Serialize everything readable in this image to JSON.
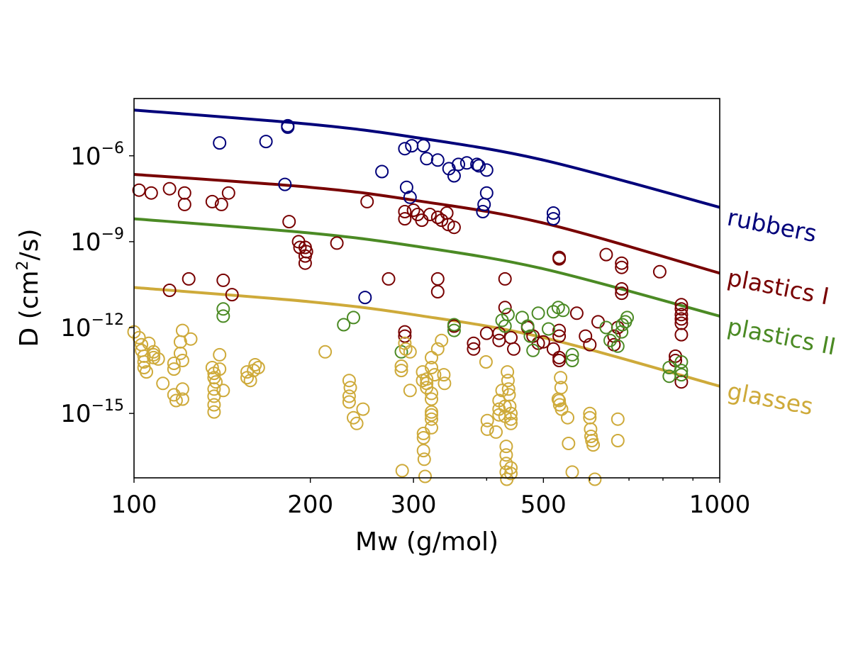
{
  "chart_data": {
    "type": "scatter",
    "title": "",
    "xlabel": "Mw (g/mol)",
    "ylabel_main": "D (cm",
    "ylabel_sup": "2",
    "ylabel_tail": "/s)",
    "xscale": "log",
    "yscale": "log",
    "xlim": [
      100,
      1000
    ],
    "ylim_log10": [
      -17.25,
      -4.0
    ],
    "x_ticks": [
      {
        "value": 100,
        "label": "100"
      },
      {
        "value": 200,
        "label": "200"
      },
      {
        "value": 300,
        "label": "300"
      },
      {
        "value": 500,
        "label": "500"
      },
      {
        "value": 1000,
        "label": "1000"
      }
    ],
    "y_ticks": [
      {
        "log10": -6,
        "base": "10",
        "exp": "−6"
      },
      {
        "log10": -9,
        "base": "10",
        "exp": "−9"
      },
      {
        "log10": -12,
        "base": "10",
        "exp": "−12"
      },
      {
        "log10": -15,
        "base": "10",
        "exp": "−15"
      }
    ],
    "curves": [
      {
        "name": "rubbers",
        "color": "#00007a",
        "points": [
          [
            100,
            -4.4
          ],
          [
            200,
            -4.9
          ],
          [
            300,
            -5.35
          ],
          [
            500,
            -6.15
          ],
          [
            1000,
            -7.8
          ]
        ]
      },
      {
        "name": "plastics I",
        "color": "#780000",
        "points": [
          [
            100,
            -6.65
          ],
          [
            200,
            -7.1
          ],
          [
            300,
            -7.55
          ],
          [
            500,
            -8.35
          ],
          [
            1000,
            -10.1
          ]
        ]
      },
      {
        "name": "plastics II",
        "color": "#4b8a24",
        "points": [
          [
            100,
            -8.2
          ],
          [
            200,
            -8.7
          ],
          [
            300,
            -9.15
          ],
          [
            500,
            -9.95
          ],
          [
            1000,
            -11.6
          ]
        ]
      },
      {
        "name": "glasses",
        "color": "#ceaa3a",
        "points": [
          [
            100,
            -10.6
          ],
          [
            200,
            -11.1
          ],
          [
            300,
            -11.55
          ],
          [
            500,
            -12.35
          ],
          [
            1000,
            -14.05
          ]
        ]
      }
    ],
    "series": [
      {
        "name": "rubbers",
        "color": "#00007a",
        "points": [
          [
            140,
            -5.55
          ],
          [
            168,
            -5.5
          ],
          [
            183,
            -4.95
          ],
          [
            183,
            -5.0
          ],
          [
            181,
            -7.0
          ],
          [
            290,
            -5.75
          ],
          [
            298,
            -5.65
          ],
          [
            312,
            -5.65
          ],
          [
            265,
            -6.55
          ],
          [
            292,
            -7.1
          ],
          [
            296,
            -7.45
          ],
          [
            316,
            -6.1
          ],
          [
            330,
            -6.15
          ],
          [
            345,
            -6.45
          ],
          [
            352,
            -6.7
          ],
          [
            358,
            -6.3
          ],
          [
            370,
            -6.25
          ],
          [
            385,
            -6.3
          ],
          [
            388,
            -6.35
          ],
          [
            400,
            -6.5
          ],
          [
            400,
            -7.3
          ],
          [
            396,
            -7.7
          ],
          [
            394,
            -7.95
          ],
          [
            520,
            -8.0
          ],
          [
            520,
            -8.2
          ],
          [
            248,
            -10.95
          ]
        ]
      },
      {
        "name": "plastics I",
        "color": "#780000",
        "points": [
          [
            102,
            -7.2
          ],
          [
            107,
            -7.3
          ],
          [
            115,
            -7.15
          ],
          [
            122,
            -7.3
          ],
          [
            122,
            -7.7
          ],
          [
            136,
            -7.6
          ],
          [
            141,
            -7.7
          ],
          [
            145,
            -7.3
          ],
          [
            115,
            -10.7
          ],
          [
            124,
            -10.3
          ],
          [
            142,
            -10.35
          ],
          [
            147,
            -10.85
          ],
          [
            184,
            -8.3
          ],
          [
            191,
            -9.0
          ],
          [
            192,
            -9.2
          ],
          [
            196,
            -9.2
          ],
          [
            196,
            -9.5
          ],
          [
            196,
            -9.75
          ],
          [
            197,
            -9.35
          ],
          [
            222,
            -9.05
          ],
          [
            250,
            -7.6
          ],
          [
            290,
            -7.95
          ],
          [
            290,
            -8.2
          ],
          [
            300,
            -7.9
          ],
          [
            305,
            -8.05
          ],
          [
            310,
            -8.25
          ],
          [
            320,
            -8.05
          ],
          [
            330,
            -8.15
          ],
          [
            335,
            -8.25
          ],
          [
            342,
            -8.0
          ],
          [
            344,
            -8.4
          ],
          [
            352,
            -8.5
          ],
          [
            330,
            -10.3
          ],
          [
            330,
            -10.75
          ],
          [
            272,
            -10.3
          ],
          [
            290,
            -12.15
          ],
          [
            290,
            -12.3
          ],
          [
            352,
            -11.95
          ],
          [
            430,
            -10.3
          ],
          [
            430,
            -11.3
          ],
          [
            420,
            -12.45
          ],
          [
            440,
            -12.35
          ],
          [
            445,
            -12.75
          ],
          [
            470,
            -12.0
          ],
          [
            480,
            -12.3
          ],
          [
            490,
            -12.55
          ],
          [
            520,
            -12.75
          ],
          [
            532,
            -9.55
          ],
          [
            532,
            -9.6
          ],
          [
            532,
            -12.1
          ],
          [
            532,
            -12.3
          ],
          [
            532,
            -13.05
          ],
          [
            532,
            -13.15
          ],
          [
            570,
            -11.5
          ],
          [
            590,
            -12.3
          ],
          [
            600,
            -12.6
          ],
          [
            620,
            -11.8
          ],
          [
            640,
            -9.45
          ],
          [
            660,
            -12.3
          ],
          [
            660,
            -12.6
          ],
          [
            670,
            -12.0
          ],
          [
            680,
            -9.75
          ],
          [
            680,
            -9.9
          ],
          [
            680,
            -10.65
          ],
          [
            680,
            -10.8
          ],
          [
            790,
            -10.05
          ],
          [
            840,
            -13.0
          ],
          [
            840,
            -13.15
          ],
          [
            860,
            -11.2
          ],
          [
            860,
            -11.35
          ],
          [
            860,
            -11.55
          ],
          [
            860,
            -11.7
          ],
          [
            860,
            -11.85
          ],
          [
            860,
            -12.25
          ],
          [
            860,
            -13.9
          ],
          [
            380,
            -12.55
          ],
          [
            380,
            -12.75
          ],
          [
            400,
            -12.2
          ],
          [
            420,
            -12.2
          ],
          [
            500,
            -12.5
          ]
        ]
      },
      {
        "name": "plastics II",
        "color": "#4b8a24",
        "points": [
          [
            142,
            -11.35
          ],
          [
            142,
            -11.6
          ],
          [
            228,
            -11.9
          ],
          [
            237,
            -11.65
          ],
          [
            286,
            -12.85
          ],
          [
            352,
            -11.9
          ],
          [
            352,
            -12.1
          ],
          [
            425,
            -11.75
          ],
          [
            435,
            -11.55
          ],
          [
            460,
            -11.65
          ],
          [
            470,
            -11.95
          ],
          [
            475,
            -12.3
          ],
          [
            490,
            -11.5
          ],
          [
            510,
            -12.05
          ],
          [
            520,
            -11.45
          ],
          [
            530,
            -11.3
          ],
          [
            540,
            -11.4
          ],
          [
            560,
            -12.95
          ],
          [
            560,
            -13.15
          ],
          [
            640,
            -12.0
          ],
          [
            650,
            -12.45
          ],
          [
            670,
            -12.65
          ],
          [
            680,
            -12.15
          ],
          [
            682,
            -11.9
          ],
          [
            690,
            -11.8
          ],
          [
            695,
            -11.65
          ],
          [
            820,
            -13.4
          ],
          [
            820,
            -13.7
          ],
          [
            860,
            -13.2
          ],
          [
            860,
            -13.5
          ],
          [
            860,
            -13.65
          ],
          [
            480,
            -12.8
          ],
          [
            430,
            -11.95
          ]
        ]
      },
      {
        "name": "glasses",
        "color": "#ceaa3a",
        "points": [
          [
            100,
            -12.15
          ],
          [
            102,
            -12.35
          ],
          [
            103,
            -12.6
          ],
          [
            103,
            -12.8
          ],
          [
            104,
            -13.0
          ],
          [
            104,
            -13.2
          ],
          [
            104,
            -13.4
          ],
          [
            105,
            -13.55
          ],
          [
            106,
            -12.55
          ],
          [
            108,
            -12.85
          ],
          [
            108,
            -12.95
          ],
          [
            108,
            -13.05
          ],
          [
            110,
            -13.1
          ],
          [
            112,
            -13.95
          ],
          [
            117,
            -13.25
          ],
          [
            117,
            -13.45
          ],
          [
            117,
            -14.35
          ],
          [
            118,
            -14.55
          ],
          [
            120,
            -12.9
          ],
          [
            120,
            -12.5
          ],
          [
            121,
            -12.1
          ],
          [
            121,
            -13.15
          ],
          [
            121,
            -14.15
          ],
          [
            121,
            -14.5
          ],
          [
            125,
            -12.4
          ],
          [
            136,
            -13.4
          ],
          [
            137,
            -13.6
          ],
          [
            137,
            -13.75
          ],
          [
            137,
            -14.15
          ],
          [
            137,
            -14.4
          ],
          [
            137,
            -14.7
          ],
          [
            137,
            -14.95
          ],
          [
            138,
            -13.9
          ],
          [
            140,
            -12.95
          ],
          [
            140,
            -13.45
          ],
          [
            142,
            -14.2
          ],
          [
            156,
            -13.55
          ],
          [
            156,
            -13.75
          ],
          [
            158,
            -13.85
          ],
          [
            160,
            -13.5
          ],
          [
            161,
            -13.3
          ],
          [
            163,
            -13.4
          ],
          [
            212,
            -12.85
          ],
          [
            233,
            -14.4
          ],
          [
            233,
            -14.6
          ],
          [
            233,
            -13.85
          ],
          [
            234,
            -14.1
          ],
          [
            237,
            -15.15
          ],
          [
            240,
            -15.35
          ],
          [
            246,
            -14.85
          ],
          [
            286,
            -13.35
          ],
          [
            286,
            -13.5
          ],
          [
            287,
            -17.0
          ],
          [
            290,
            -12.55
          ],
          [
            291,
            -12.75
          ],
          [
            296,
            -12.85
          ],
          [
            296,
            -14.2
          ],
          [
            311,
            -13.55
          ],
          [
            311,
            -13.85
          ],
          [
            312,
            -15.7
          ],
          [
            312,
            -15.85
          ],
          [
            312,
            -16.3
          ],
          [
            313,
            -16.6
          ],
          [
            314,
            -17.2
          ],
          [
            316,
            -13.8
          ],
          [
            316,
            -13.95
          ],
          [
            316,
            -14.1
          ],
          [
            322,
            -13.05
          ],
          [
            322,
            -13.4
          ],
          [
            322,
            -14.3
          ],
          [
            322,
            -14.5
          ],
          [
            322,
            -14.95
          ],
          [
            322,
            -15.05
          ],
          [
            322,
            -15.2
          ],
          [
            322,
            -15.5
          ],
          [
            326,
            -13.65
          ],
          [
            330,
            -12.75
          ],
          [
            335,
            -12.45
          ],
          [
            338,
            -13.65
          ],
          [
            339,
            -13.95
          ],
          [
            399,
            -13.2
          ],
          [
            401,
            -15.25
          ],
          [
            401,
            -15.55
          ],
          [
            415,
            -15.65
          ],
          [
            420,
            -14.55
          ],
          [
            420,
            -14.85
          ],
          [
            420,
            -15.05
          ],
          [
            425,
            -14.2
          ],
          [
            430,
            -14.75
          ],
          [
            430,
            -15.1
          ],
          [
            432,
            -16.15
          ],
          [
            432,
            -16.45
          ],
          [
            432,
            -16.75
          ],
          [
            432,
            -17.05
          ],
          [
            433,
            -17.3
          ],
          [
            434,
            -13.55
          ],
          [
            435,
            -13.85
          ],
          [
            436,
            -14.15
          ],
          [
            437,
            -14.35
          ],
          [
            438,
            -14.75
          ],
          [
            440,
            -15.0
          ],
          [
            440,
            -15.2
          ],
          [
            440,
            -15.35
          ],
          [
            440,
            -16.9
          ],
          [
            440,
            -17.1
          ],
          [
            530,
            -14.5
          ],
          [
            532,
            -14.55
          ],
          [
            533,
            -14.7
          ],
          [
            535,
            -13.75
          ],
          [
            536,
            -14.1
          ],
          [
            537,
            -14.85
          ],
          [
            550,
            -15.15
          ],
          [
            552,
            -16.05
          ],
          [
            560,
            -17.05
          ],
          [
            600,
            -15.0
          ],
          [
            600,
            -15.15
          ],
          [
            602,
            -15.55
          ],
          [
            603,
            -15.8
          ],
          [
            605,
            -15.95
          ],
          [
            608,
            -16.1
          ],
          [
            612,
            -17.3
          ],
          [
            670,
            -15.2
          ],
          [
            670,
            -15.95
          ]
        ]
      }
    ]
  }
}
